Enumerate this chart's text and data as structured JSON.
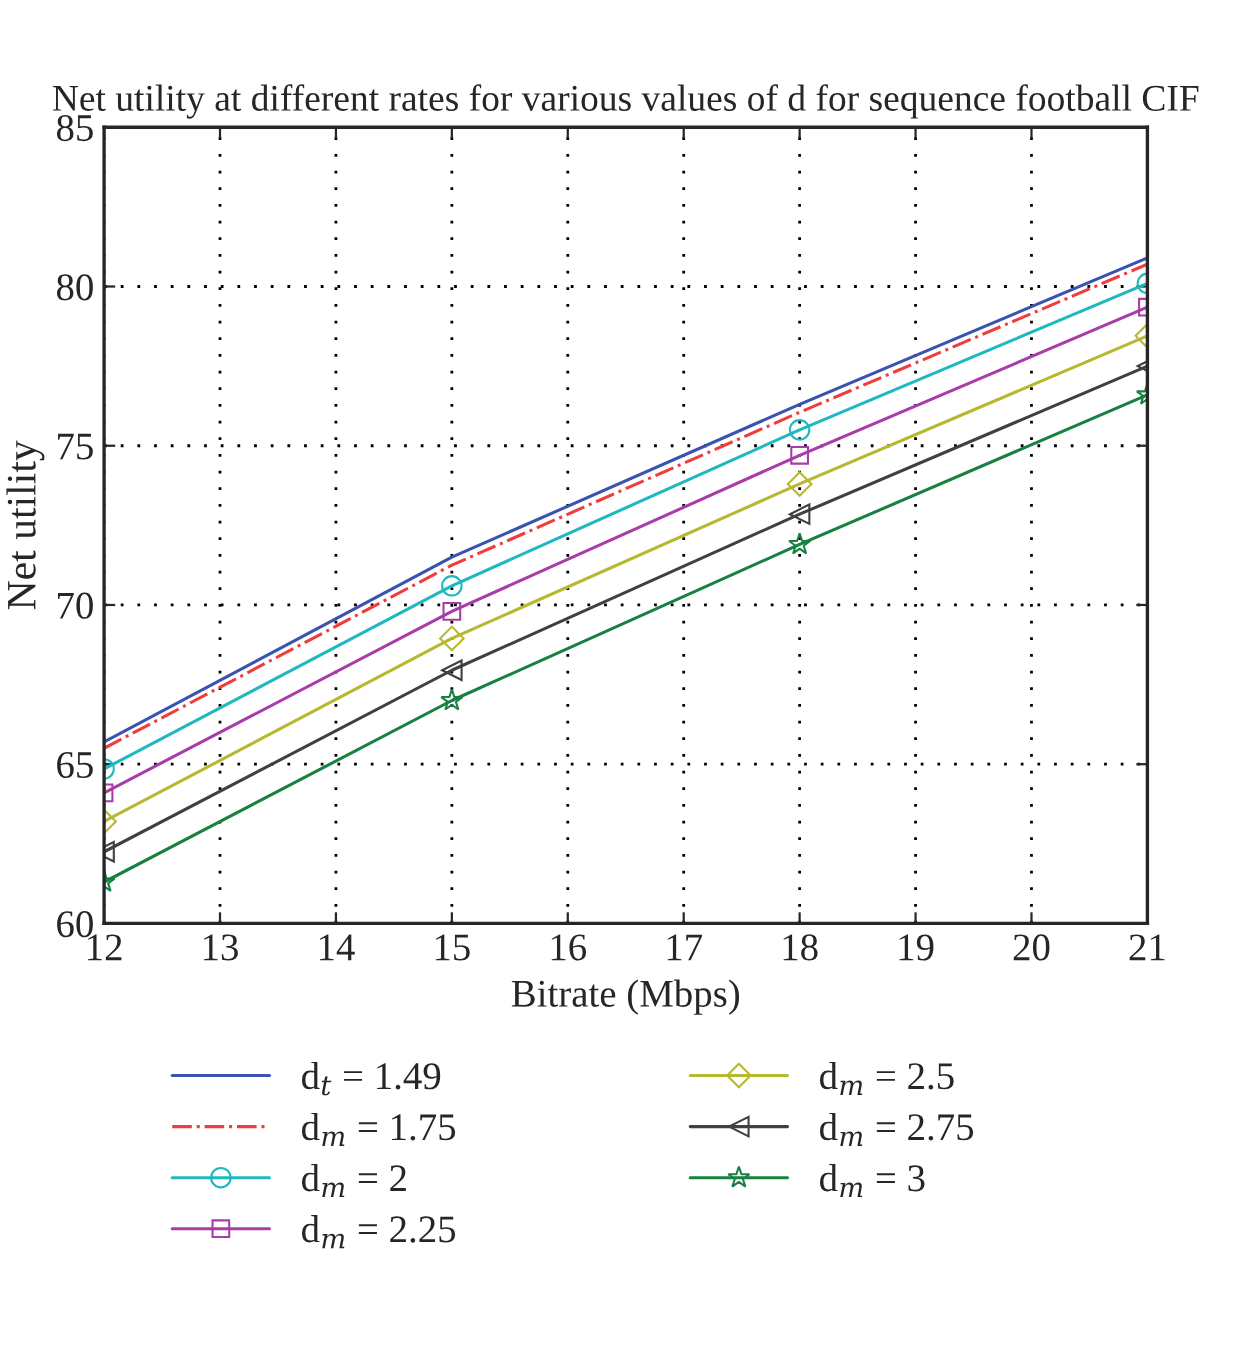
{
  "chart_data": {
    "type": "line",
    "title": "Net utility at different rates for various values of d for sequence football CIF",
    "xlabel": "Bitrate (Mbps)",
    "ylabel": "Net utility",
    "x": [
      12,
      15,
      18,
      21
    ],
    "xlim": [
      12,
      21
    ],
    "xticks": [
      12,
      13,
      14,
      15,
      16,
      17,
      18,
      19,
      20,
      21
    ],
    "ylim": [
      60,
      85
    ],
    "yticks": [
      60,
      65,
      70,
      75,
      80,
      85
    ],
    "grid": true,
    "legend": "bottom",
    "series": [
      {
        "name": "d$_{t}$ = 1.49",
        "color": "#3a52b0",
        "values": [
          65.7,
          71.5,
          76.3,
          80.9
        ],
        "marker": "none",
        "line_style": "solid"
      },
      {
        "name": "d$_{m}$ = 1.75",
        "color": "#f03c3c",
        "values": [
          65.5,
          71.25,
          76.05,
          80.7
        ],
        "marker": "none",
        "line_style": "dashdot"
      },
      {
        "name": "d$_{m}$ = 2",
        "color": "#20b8c0",
        "values": [
          64.85,
          70.6,
          75.5,
          80.1
        ],
        "marker": "circle",
        "line_style": "solid"
      },
      {
        "name": "d$_{m}$ = 2.25",
        "color": "#a83ca8",
        "values": [
          64.1,
          69.8,
          74.7,
          79.35
        ],
        "marker": "square",
        "line_style": "solid"
      },
      {
        "name": "d$_{m}$ = 2.5",
        "color": "#b8b830",
        "values": [
          63.2,
          68.95,
          73.8,
          78.45
        ],
        "marker": "diamond",
        "line_style": "solid"
      },
      {
        "name": "d$_{m}$ = 2.75",
        "color": "#404040",
        "values": [
          62.25,
          67.95,
          72.85,
          77.5
        ],
        "marker": "triangle",
        "line_style": "solid"
      },
      {
        "name": "d$_{m}$ = 3",
        "color": "#188040",
        "values": [
          61.3,
          67.0,
          71.9,
          76.6
        ],
        "marker": "star",
        "line_style": "solid"
      }
    ]
  }
}
